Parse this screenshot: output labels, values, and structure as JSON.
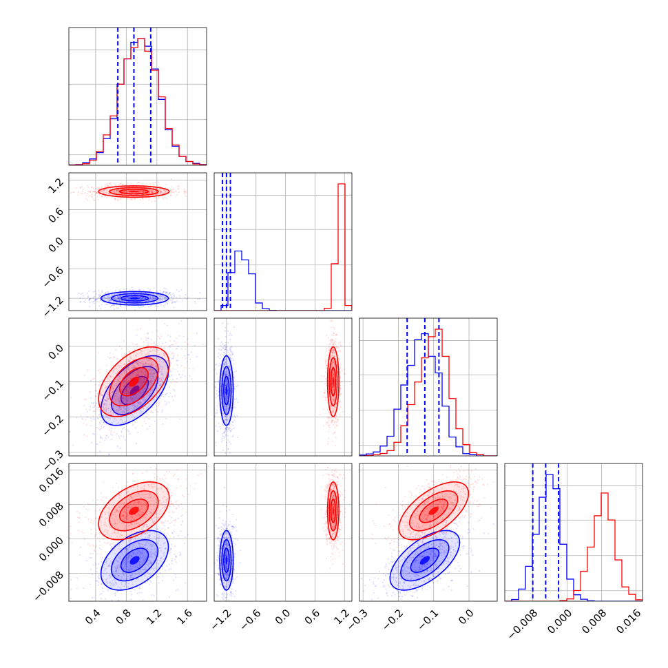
{
  "chart_data": {
    "type": "corner",
    "title": "",
    "grid": true,
    "colors": {
      "series_a": "#0000ff",
      "series_b": "#ff0000",
      "quantile": "#0000ff"
    },
    "parameters": [
      {
        "range": [
          0.05,
          1.85
        ],
        "ticks": [
          0.4,
          0.8,
          1.2,
          1.6
        ],
        "tick_labels": [
          "0.4",
          "0.8",
          "1.2",
          "1.6"
        ]
      },
      {
        "range": [
          -1.45,
          1.35
        ],
        "ticks": [
          -1.2,
          -0.6,
          0.0,
          0.6,
          1.2
        ],
        "tick_labels": [
          "−1.2",
          "−0.6",
          "0.0",
          "0.6",
          "1.2"
        ]
      },
      {
        "range": [
          -0.31,
          0.08
        ],
        "ticks": [
          -0.3,
          -0.2,
          -0.1,
          0.0
        ],
        "tick_labels": [
          "−0.3",
          "−0.2",
          "−0.1",
          "0.0"
        ]
      },
      {
        "range": [
          -0.0145,
          0.0175
        ],
        "ticks": [
          -0.008,
          0.0,
          0.008,
          0.016
        ],
        "tick_labels": [
          "−0.008",
          "0.000",
          "0.008",
          "0.016"
        ]
      }
    ],
    "quantiles": [
      [
        0.69,
        0.9,
        1.12
      ],
      [
        -1.28,
        -1.2,
        -1.12
      ],
      [
        -0.175,
        -0.125,
        -0.085
      ],
      [
        -0.008,
        -0.005,
        -0.002
      ]
    ],
    "series": [
      {
        "name": "blue",
        "marginals": [
          [
            0.3,
            0.6,
            2,
            5,
            10,
            21,
            37,
            64,
            84,
            97,
            100,
            94,
            76,
            52,
            28,
            15,
            7,
            3,
            1.5,
            0.6
          ],
          [
            0,
            4,
            30,
            47,
            40,
            29,
            6,
            1.5,
            0.2,
            0,
            0,
            0,
            0,
            0,
            0,
            0,
            0,
            0,
            0,
            0
          ],
          [
            0.6,
            1.3,
            2.6,
            6.5,
            13,
            31,
            47,
            60,
            77,
            81,
            66,
            55,
            33,
            12.5,
            6,
            1.5,
            1,
            0,
            0,
            0
          ],
          [
            0,
            1.2,
            8.5,
            24.5,
            47,
            73,
            89,
            79,
            40,
            15.5,
            4.5,
            1.4,
            0.3,
            0,
            0,
            0,
            0,
            0,
            0,
            0
          ]
        ],
        "means": [
          0.91,
          -1.2,
          -0.125,
          -0.005
        ],
        "sigmas": [
          0.21,
          0.065,
          0.047,
          0.0033
        ],
        "correlations": [
          [
            1,
            0,
            0.55,
            0.45
          ],
          [
            0,
            1,
            0,
            0
          ],
          [
            0.55,
            0,
            1,
            0.6
          ],
          [
            0.45,
            0,
            0.6,
            1
          ]
        ]
      },
      {
        "name": "red",
        "marginals": [
          [
            0.2,
            0.4,
            1.2,
            4,
            11,
            24,
            39,
            64,
            84,
            93,
            100,
            90,
            75,
            54,
            29,
            16,
            7,
            3,
            1,
            0.4
          ],
          [
            0,
            0,
            0,
            0,
            0,
            0,
            0,
            0,
            0,
            0,
            0,
            0,
            0,
            0,
            0,
            0,
            1.8,
            37,
            100,
            4
          ],
          [
            0,
            0.3,
            0.8,
            1.6,
            3.5,
            9,
            20,
            34,
            49,
            65,
            79,
            84,
            66,
            38,
            18,
            7.5,
            2.2,
            1,
            0,
            0
          ],
          [
            0,
            0,
            0,
            0,
            0,
            0,
            0,
            0,
            0.5,
            1.6,
            7.5,
            21,
            38,
            60,
            76,
            57,
            29,
            10,
            4.8,
            1
          ]
        ],
        "means": [
          0.9,
          0.97,
          -0.1,
          0.0065
        ],
        "sigmas": [
          0.22,
          0.055,
          0.047,
          0.0032
        ],
        "correlations": [
          [
            1,
            0,
            0.5,
            0.45
          ],
          [
            0,
            1,
            0,
            0
          ],
          [
            0.5,
            0,
            1,
            0.6
          ],
          [
            0.45,
            0,
            0.6,
            1
          ]
        ]
      }
    ]
  }
}
